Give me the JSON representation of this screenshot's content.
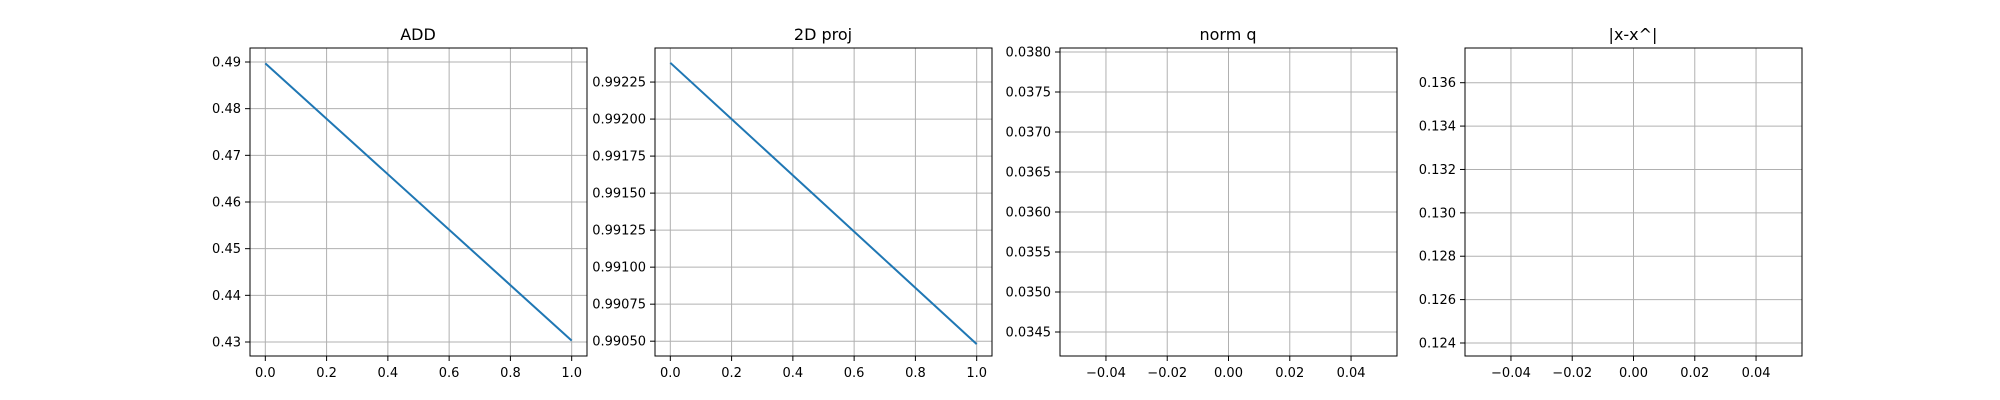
{
  "chart_data": [
    {
      "type": "line",
      "title": "ADD",
      "xlabel": "",
      "ylabel": "",
      "xlim": [
        -0.05,
        1.05
      ],
      "ylim": [
        0.427,
        0.493
      ],
      "x_ticks": [
        0.0,
        0.2,
        0.4,
        0.6,
        0.8,
        1.0
      ],
      "x_tick_labels": [
        "0.0",
        "0.2",
        "0.4",
        "0.6",
        "0.8",
        "1.0"
      ],
      "y_ticks": [
        0.43,
        0.44,
        0.45,
        0.46,
        0.47,
        0.48,
        0.49
      ],
      "y_tick_labels": [
        "0.43",
        "0.44",
        "0.45",
        "0.46",
        "0.47",
        "0.48",
        "0.49"
      ],
      "grid": true,
      "series": [
        {
          "color": "#1f77b4",
          "x": [
            0.0,
            1.0
          ],
          "y": [
            0.4897,
            0.4303
          ]
        }
      ]
    },
    {
      "type": "line",
      "title": "2D proj",
      "xlabel": "",
      "ylabel": "",
      "xlim": [
        -0.05,
        1.05
      ],
      "ylim": [
        0.9904,
        0.99248
      ],
      "x_ticks": [
        0.0,
        0.2,
        0.4,
        0.6,
        0.8,
        1.0
      ],
      "x_tick_labels": [
        "0.0",
        "0.2",
        "0.4",
        "0.6",
        "0.8",
        "1.0"
      ],
      "y_ticks": [
        0.9905,
        0.99075,
        0.991,
        0.99125,
        0.9915,
        0.99175,
        0.992,
        0.99225
      ],
      "y_tick_labels": [
        "0.99050",
        "0.99075",
        "0.99100",
        "0.99125",
        "0.99150",
        "0.99175",
        "0.99200",
        "0.99225"
      ],
      "grid": true,
      "series": [
        {
          "color": "#1f77b4",
          "x": [
            0.0,
            1.0
          ],
          "y": [
            0.99238,
            0.99048
          ]
        }
      ]
    },
    {
      "type": "line",
      "title": "norm q",
      "xlabel": "",
      "ylabel": "",
      "xlim": [
        -0.055,
        0.055
      ],
      "ylim": [
        0.0342,
        0.03805
      ],
      "x_ticks": [
        -0.04,
        -0.02,
        0.0,
        0.02,
        0.04
      ],
      "x_tick_labels": [
        "−0.04",
        "−0.02",
        "0.00",
        "0.02",
        "0.04"
      ],
      "y_ticks": [
        0.0345,
        0.035,
        0.0355,
        0.036,
        0.0365,
        0.037,
        0.0375,
        0.038
      ],
      "y_tick_labels": [
        "0.0345",
        "0.0350",
        "0.0355",
        "0.0360",
        "0.0365",
        "0.0370",
        "0.0375",
        "0.0380"
      ],
      "grid": true,
      "series": []
    },
    {
      "type": "line",
      "title": "|x-x^|",
      "xlabel": "",
      "ylabel": "",
      "xlim": [
        -0.055,
        0.055
      ],
      "ylim": [
        0.1234,
        0.1376
      ],
      "x_ticks": [
        -0.04,
        -0.02,
        0.0,
        0.02,
        0.04
      ],
      "x_tick_labels": [
        "−0.04",
        "−0.02",
        "0.00",
        "0.02",
        "0.04"
      ],
      "y_ticks": [
        0.124,
        0.126,
        0.128,
        0.13,
        0.132,
        0.134,
        0.136
      ],
      "y_tick_labels": [
        "0.124",
        "0.126",
        "0.128",
        "0.130",
        "0.132",
        "0.134",
        "0.136"
      ],
      "grid": true,
      "series": []
    }
  ]
}
